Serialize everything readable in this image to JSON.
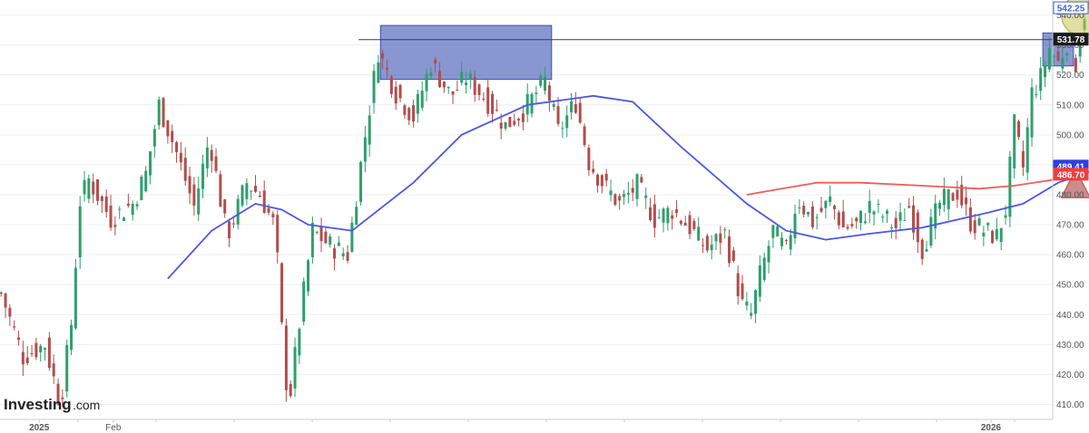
{
  "chart_data": {
    "type": "candlestick",
    "y_axis_side": "right",
    "ylim": [
      405,
      545
    ],
    "y_ticks": [
      410,
      420,
      430,
      440,
      450,
      460,
      470,
      480,
      490,
      500,
      510,
      520,
      530,
      540
    ],
    "x_tick_labels": [
      {
        "label": "2025",
        "at": 18
      },
      {
        "label": "Feb",
        "at": 52
      }
    ],
    "x_year_label_2026": {
      "label": "2026",
      "at": 455
    },
    "period_count": 480,
    "key_points": [
      [
        0,
        447
      ],
      [
        10,
        426
      ],
      [
        20,
        430
      ],
      [
        27,
        410
      ],
      [
        32,
        437
      ],
      [
        36,
        478
      ],
      [
        40,
        485
      ],
      [
        50,
        472
      ],
      [
        60,
        477
      ],
      [
        66,
        487
      ],
      [
        72,
        510
      ],
      [
        80,
        494
      ],
      [
        88,
        476
      ],
      [
        95,
        499
      ],
      [
        103,
        466
      ],
      [
        112,
        484
      ],
      [
        118,
        480
      ],
      [
        125,
        469
      ],
      [
        128,
        435
      ],
      [
        131,
        409
      ],
      [
        136,
        437
      ],
      [
        142,
        468
      ],
      [
        150,
        463
      ],
      [
        158,
        460
      ],
      [
        165,
        495
      ],
      [
        172,
        528
      ],
      [
        180,
        514
      ],
      [
        188,
        506
      ],
      [
        196,
        524
      ],
      [
        205,
        513
      ],
      [
        212,
        519
      ],
      [
        220,
        513
      ],
      [
        230,
        503
      ],
      [
        238,
        508
      ],
      [
        248,
        518
      ],
      [
        254,
        501
      ],
      [
        262,
        511
      ],
      [
        268,
        491
      ],
      [
        276,
        482
      ],
      [
        282,
        477
      ],
      [
        290,
        483
      ],
      [
        298,
        472
      ],
      [
        306,
        475
      ],
      [
        314,
        469
      ],
      [
        322,
        462
      ],
      [
        330,
        467
      ],
      [
        338,
        443
      ],
      [
        342,
        440
      ],
      [
        346,
        453
      ],
      [
        352,
        468
      ],
      [
        358,
        461
      ],
      [
        363,
        479
      ],
      [
        370,
        471
      ],
      [
        378,
        478
      ],
      [
        384,
        469
      ],
      [
        390,
        470
      ],
      [
        396,
        476
      ],
      [
        402,
        473
      ],
      [
        408,
        469
      ],
      [
        414,
        476
      ],
      [
        420,
        462
      ],
      [
        428,
        477
      ],
      [
        436,
        481
      ],
      [
        442,
        471
      ],
      [
        448,
        468
      ],
      [
        454,
        466
      ],
      [
        458,
        475
      ],
      [
        462,
        503
      ],
      [
        466,
        489
      ],
      [
        470,
        514
      ],
      [
        474,
        519
      ],
      [
        478,
        529
      ],
      [
        482,
        524
      ],
      [
        486,
        531
      ],
      [
        490,
        524
      ],
      [
        494,
        541
      ],
      [
        498,
        544
      ]
    ],
    "series": [
      {
        "name": "",
        "type": "moving-average",
        "color": "#4b57e8",
        "start_index": 76,
        "points": [
          [
            76,
            452
          ],
          [
            96,
            468
          ],
          [
            116,
            477
          ],
          [
            128,
            475
          ],
          [
            140,
            470
          ],
          [
            160,
            468
          ],
          [
            188,
            484
          ],
          [
            210,
            500
          ],
          [
            240,
            510
          ],
          [
            270,
            513
          ],
          [
            288,
            511
          ],
          [
            310,
            496
          ],
          [
            340,
            477
          ],
          [
            358,
            468
          ],
          [
            376,
            465
          ],
          [
            396,
            467
          ],
          [
            420,
            469
          ],
          [
            450,
            474
          ],
          [
            466,
            477
          ],
          [
            482,
            484
          ],
          [
            498,
            488
          ]
        ]
      },
      {
        "name": "",
        "type": "moving-average",
        "color": "#f05c5c",
        "start_index": 340,
        "points": [
          [
            340,
            480
          ],
          [
            356,
            482
          ],
          [
            372,
            484
          ],
          [
            392,
            484
          ],
          [
            420,
            483
          ],
          [
            446,
            482
          ],
          [
            462,
            483
          ],
          [
            480,
            485
          ],
          [
            498,
            488
          ]
        ]
      }
    ],
    "annotations": [
      {
        "kind": "horizontal-line",
        "value": 531.78,
        "from_index": 163,
        "color": "#3a3f4e"
      },
      {
        "kind": "zone",
        "label": "",
        "from_index": 173,
        "to_index": 251,
        "low": 518.5,
        "high": 536.5,
        "color": "#3b52b2"
      },
      {
        "kind": "zone",
        "label": "",
        "from_index": 475,
        "to_index": 489,
        "low": 523,
        "high": 534,
        "color": "#3b52b2"
      },
      {
        "kind": "ellipse-highlight",
        "center_index": 492,
        "center_value": 539.5,
        "color": "#c7c35a"
      },
      {
        "kind": "triangle-marker",
        "center_index": 490,
        "low": 479,
        "high": 488.5,
        "color": "#b24d4d"
      }
    ],
    "price_tags": [
      {
        "value": 542.25,
        "text": "542.25",
        "bg": "#ffffff",
        "fg": "#3a66d9",
        "border": "#3a66d9"
      },
      {
        "value": 531.78,
        "text": "531.78",
        "bg": "#1b1b1b",
        "fg": "#ffffff",
        "border": "#1b1b1b"
      },
      {
        "value": 489.41,
        "text": "489.41",
        "bg": "#2f3de3",
        "fg": "#ffffff",
        "border": "#2f3de3"
      },
      {
        "value": 486.7,
        "text": "486.70",
        "bg": "#ef3e3e",
        "fg": "#ffffff",
        "border": "#ef3e3e"
      }
    ],
    "colors": {
      "up": "#2f9e6e",
      "down": "#b24d4d",
      "grid": "#eceff3",
      "axis": "#c9cdd4"
    }
  },
  "branding": {
    "logo_main": "Investing",
    "logo_suffix": ".com"
  }
}
